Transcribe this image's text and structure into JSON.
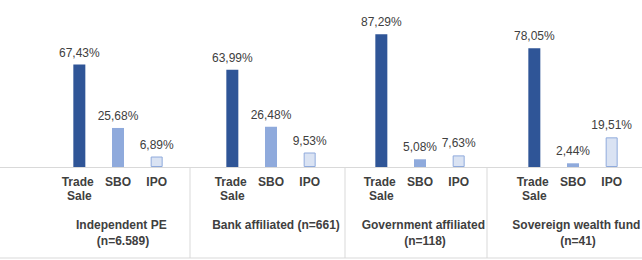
{
  "chart_data": [
    {
      "type": "bar",
      "title": "Independent PE (n=6.589)",
      "categories": [
        "Trade Sale",
        "SBO",
        "IPO"
      ],
      "values": [
        67.43,
        25.68,
        6.89
      ],
      "value_labels": [
        "67,43%",
        "25,68%",
        "6,89%"
      ],
      "colors": [
        "#2f5597",
        "#8faadc",
        "#dae3f3"
      ],
      "ylim": [
        0,
        100
      ],
      "data_labels": true,
      "tick_labels": "x",
      "grid": false
    },
    {
      "type": "bar",
      "title": "Bank affiliated (n=661)",
      "categories": [
        "Trade Sale",
        "SBO",
        "IPO"
      ],
      "values": [
        63.99,
        26.48,
        9.53
      ],
      "value_labels": [
        "63,99%",
        "26,48%",
        "9,53%"
      ],
      "colors": [
        "#2f5597",
        "#8faadc",
        "#dae3f3"
      ],
      "ylim": [
        0,
        100
      ],
      "data_labels": true,
      "tick_labels": "x",
      "grid": false
    },
    {
      "type": "bar",
      "title": "Government affiliated (n=118)",
      "categories": [
        "Trade Sale",
        "SBO",
        "IPO"
      ],
      "values": [
        87.29,
        5.08,
        7.63
      ],
      "value_labels": [
        "87,29%",
        "5,08%",
        "7,63%"
      ],
      "colors": [
        "#2f5597",
        "#8faadc",
        "#dae3f3"
      ],
      "ylim": [
        0,
        100
      ],
      "data_labels": true,
      "tick_labels": "x",
      "grid": false
    },
    {
      "type": "bar",
      "title": "Sovereign wealth fund (n=41)",
      "categories": [
        "Trade Sale",
        "SBO",
        "IPO"
      ],
      "values": [
        78.05,
        2.44,
        19.51
      ],
      "value_labels": [
        "78,05%",
        "2,44%",
        "19,51%"
      ],
      "colors": [
        "#2f5597",
        "#8faadc",
        "#dae3f3"
      ],
      "ylim": [
        0,
        100
      ],
      "data_labels": true,
      "tick_labels": "x",
      "grid": false
    }
  ]
}
